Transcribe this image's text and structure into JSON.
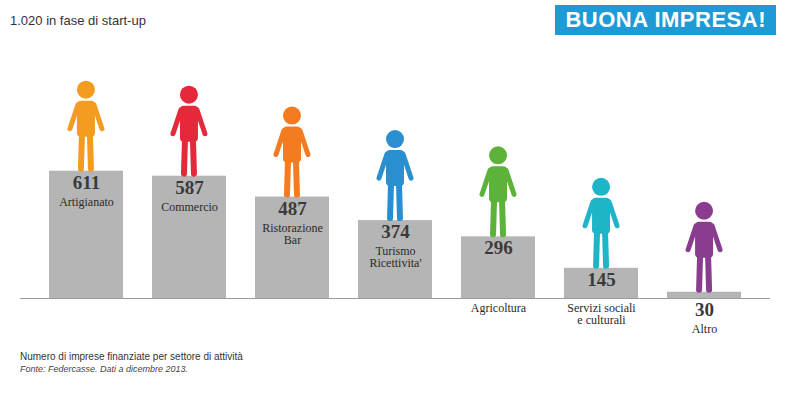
{
  "chart_data": {
    "type": "bar",
    "title": "BUONA IMPRESA!",
    "subtitle": "1.020 in fase di start-up",
    "caption": "Numero di imprese finanziate per settore di attività",
    "source": "Fonte: Federcasse. Dati a dicembre 2013.",
    "categories": [
      "Artigianato",
      "Commercio",
      "Ristorazione\nBar",
      "Turismo\nRicettivita'",
      "Agricoltura",
      "Servizi sociali\ne culturali",
      "Altro"
    ],
    "values": [
      611,
      587,
      487,
      374,
      296,
      145,
      30
    ],
    "color": "#b5b5b5",
    "ylim": [
      0,
      1200
    ],
    "data_labels": true,
    "tick_labels": false,
    "grid": false
  }
}
